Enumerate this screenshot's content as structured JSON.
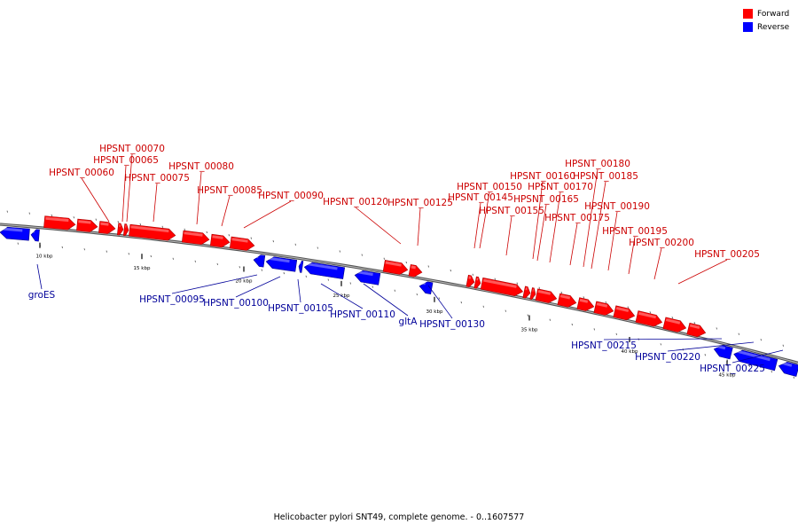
{
  "caption": "Helicobacter pylori SNT49, complete genome. - 0..1607577",
  "legend": [
    {
      "label": "Forward",
      "color": "#ff0000"
    },
    {
      "label": "Reverse",
      "color": "#0000ff"
    }
  ],
  "colors": {
    "forward": "#ff0000",
    "reverse": "#0000ff",
    "backbone": "#888888",
    "label_forward": "#cc0000",
    "label_reverse": "#000099"
  },
  "tick_labels": [
    "10 kbp",
    "15 kbp",
    "20 kbp",
    "25 kbp",
    "30 kbp",
    "35 kbp",
    "40 kbp",
    "45 kbp"
  ],
  "forward_genes": [
    "HPSNT_00060",
    "HPSNT_00065",
    "HPSNT_00070",
    "HPSNT_00075",
    "HPSNT_00080",
    "HPSNT_00085",
    "HPSNT_00090",
    "HPSNT_00120",
    "HPSNT_00125",
    "HPSNT_00145",
    "HPSNT_00150",
    "HPSNT_00155",
    "HPSNT_00160",
    "HPSNT_00165",
    "HPSNT_00170",
    "HPSNT_00175",
    "HPSNT_00180",
    "HPSNT_00185",
    "HPSNT_00190",
    "HPSNT_00195",
    "HPSNT_00200",
    "HPSNT_00205"
  ],
  "reverse_genes": [
    "groES",
    "HPSNT_00095",
    "HPSNT_00100",
    "HPSNT_00105",
    "HPSNT_00110",
    "gltA",
    "HPSNT_00130",
    "HPSNT_00215",
    "HPSNT_00220",
    "HPSNT_00225"
  ]
}
